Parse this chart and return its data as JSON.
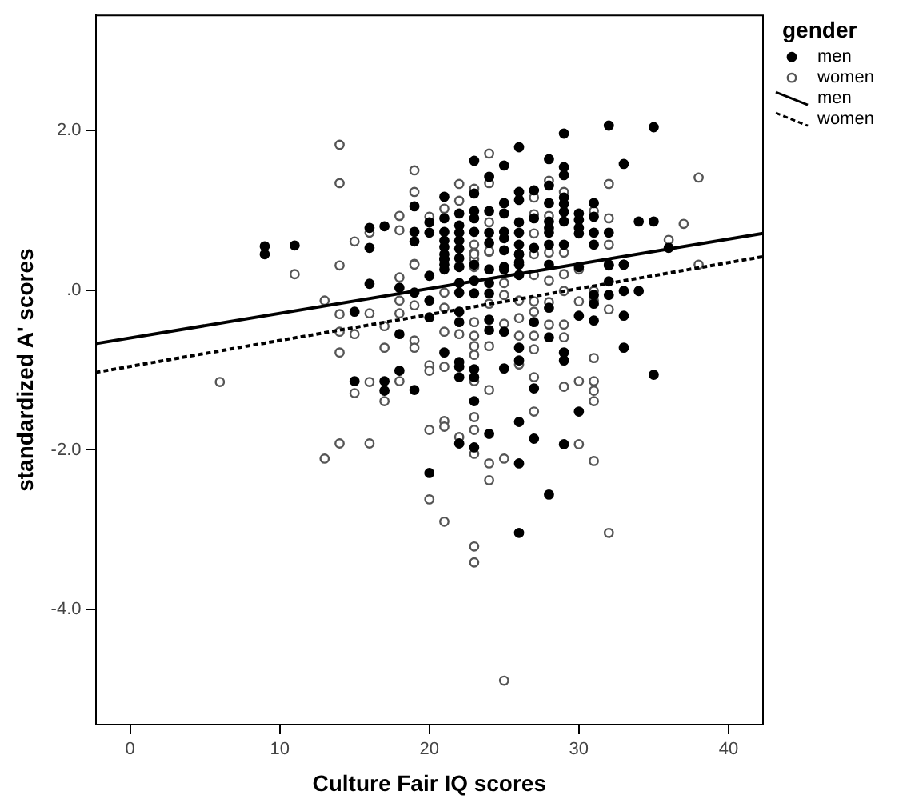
{
  "chart_data": {
    "type": "scatter",
    "xlabel": "Culture Fair IQ scores",
    "ylabel": "standardized A' scores",
    "legend_title": "gender",
    "legend": "right",
    "grid": false,
    "xlim": [
      -2.3,
      42.3
    ],
    "xticks": [
      0,
      10,
      20,
      30,
      40
    ],
    "ylim": [
      -5.44,
      3.44
    ],
    "yticks": [
      {
        "value": 2,
        "label": "2.0"
      },
      {
        "value": 0,
        "label": ".0"
      },
      {
        "value": -2,
        "label": "-2.0"
      },
      {
        "value": -4,
        "label": "-4.0"
      }
    ],
    "series": [
      {
        "name": "men",
        "type": "scatter",
        "marker": "circle",
        "color": "#000000",
        "x": [
          9,
          9,
          11,
          15,
          15,
          16,
          16,
          16,
          17,
          17,
          17,
          18,
          18,
          18,
          19,
          19,
          19,
          19,
          19,
          20,
          20,
          20,
          20,
          20,
          20,
          21,
          21,
          21,
          21,
          21,
          21,
          21,
          21,
          21,
          21,
          21,
          22,
          22,
          22,
          22,
          22,
          22,
          22,
          22,
          22,
          22,
          22,
          22,
          22,
          22,
          22,
          23,
          23,
          23,
          23,
          23,
          23,
          23,
          23,
          23,
          23,
          23,
          23,
          24,
          24,
          24,
          24,
          24,
          24,
          24,
          24,
          24,
          24,
          25,
          25,
          25,
          25,
          25,
          25,
          25,
          25,
          25,
          25,
          26,
          26,
          26,
          26,
          26,
          26,
          26,
          26,
          26,
          26,
          26,
          26,
          26,
          26,
          26,
          26,
          27,
          27,
          27,
          27,
          27,
          27,
          28,
          28,
          28,
          28,
          28,
          28,
          28,
          28,
          28,
          28,
          28,
          29,
          29,
          29,
          29,
          29,
          29,
          29,
          29,
          29,
          29,
          29,
          30,
          30,
          30,
          30,
          30,
          30,
          30,
          31,
          31,
          31,
          31,
          31,
          31,
          31,
          32,
          32,
          32,
          32,
          32,
          32,
          33,
          33,
          33,
          33,
          33,
          33,
          34,
          34,
          35,
          35,
          35,
          36
        ],
        "values": [
          0.55,
          0.45,
          0.56,
          -0.27,
          -1.14,
          0.78,
          0.53,
          0.08,
          0.8,
          -1.14,
          -1.26,
          0.03,
          -0.55,
          -1.01,
          1.05,
          0.73,
          0.61,
          -0.03,
          -1.25,
          0.85,
          0.72,
          0.18,
          -0.13,
          -0.34,
          -2.29,
          1.17,
          0.9,
          0.73,
          0.62,
          0.54,
          0.39,
          0.32,
          0.45,
          0.26,
          -0.78,
          0.39,
          0.96,
          0.81,
          0.72,
          0.62,
          0.52,
          0.4,
          0.29,
          0.09,
          -0.03,
          -0.27,
          -0.4,
          -0.9,
          -0.96,
          -1.09,
          -1.92,
          1.62,
          1.21,
          0.99,
          0.9,
          0.73,
          0.32,
          0.12,
          -0.04,
          -0.99,
          -1.09,
          -1.39,
          -1.97,
          1.42,
          0.99,
          0.72,
          0.59,
          0.26,
          0.09,
          -0.04,
          -0.37,
          -0.5,
          -1.8,
          1.56,
          1.09,
          0.96,
          0.73,
          0.65,
          0.5,
          0.29,
          0.26,
          -0.52,
          -0.98,
          1.79,
          1.23,
          1.13,
          0.85,
          0.72,
          0.57,
          0.45,
          0.35,
          0.45,
          0.32,
          0.19,
          -0.72,
          -0.88,
          -1.65,
          -2.17,
          -3.04,
          1.25,
          0.9,
          0.53,
          -0.4,
          -1.23,
          -1.86,
          1.64,
          1.31,
          1.09,
          0.86,
          0.78,
          0.72,
          0.57,
          0.32,
          -0.22,
          -0.59,
          -2.56,
          1.96,
          1.54,
          1.44,
          1.16,
          1.08,
          0.98,
          0.86,
          0.57,
          -0.78,
          -0.88,
          -1.93,
          0.96,
          0.88,
          0.78,
          0.71,
          0.29,
          -0.32,
          -1.52,
          1.09,
          0.92,
          0.72,
          0.57,
          -0.06,
          -0.17,
          -0.38,
          2.06,
          0.72,
          0.32,
          0.31,
          0.11,
          -0.06,
          1.58,
          0.32,
          0.32,
          -0.01,
          -0.32,
          -0.72,
          0.86,
          -0.01,
          2.04,
          0.86,
          -1.06,
          0.53
        ]
      },
      {
        "name": "women",
        "type": "scatter",
        "marker": "circle",
        "color": "#555555",
        "x": [
          14,
          14,
          14,
          15,
          16,
          18,
          18,
          19,
          19,
          19,
          20,
          21,
          22,
          22,
          22,
          23,
          23,
          23,
          23,
          24,
          24,
          24,
          24,
          27,
          27,
          27,
          27,
          28,
          28,
          28,
          29,
          29,
          31,
          32,
          32,
          32,
          36,
          37,
          38,
          38,
          6,
          11,
          13,
          13,
          14,
          14,
          14,
          14,
          15,
          15,
          16,
          16,
          16,
          17,
          17,
          17,
          18,
          18,
          18,
          18,
          19,
          19,
          19,
          19,
          20,
          20,
          20,
          20,
          21,
          21,
          21,
          21,
          21,
          21,
          22,
          22,
          23,
          23,
          23,
          23,
          23,
          23,
          23,
          23,
          23,
          23,
          24,
          24,
          24,
          24,
          24,
          24,
          25,
          25,
          25,
          25,
          26,
          26,
          26,
          26,
          27,
          27,
          27,
          27,
          27,
          27,
          27,
          28,
          28,
          28,
          29,
          29,
          29,
          29,
          29,
          30,
          30,
          30,
          30,
          31,
          31,
          31,
          31,
          31,
          31,
          31,
          32,
          21,
          32,
          23,
          23,
          25
        ],
        "values": [
          1.82,
          1.34,
          0.31,
          0.61,
          0.72,
          0.93,
          0.75,
          1.5,
          1.23,
          0.33,
          0.92,
          1.02,
          1.33,
          1.12,
          0.3,
          1.27,
          0.57,
          0.47,
          0.39,
          1.71,
          1.34,
          0.85,
          0.48,
          1.16,
          0.95,
          0.71,
          0.45,
          1.37,
          0.93,
          0.47,
          1.23,
          0.47,
          0.99,
          1.33,
          0.9,
          0.57,
          0.63,
          0.83,
          1.41,
          0.32,
          -1.15,
          0.2,
          -0.13,
          -2.11,
          -0.3,
          -0.52,
          -0.78,
          -1.92,
          -0.55,
          -1.29,
          -0.29,
          -1.15,
          -1.92,
          -0.45,
          -0.72,
          -1.39,
          0.16,
          -0.13,
          -0.29,
          -1.14,
          0.32,
          -0.19,
          -0.63,
          -0.72,
          -0.94,
          -1.01,
          -1.75,
          -2.62,
          -0.03,
          -0.22,
          -0.52,
          -0.96,
          -1.64,
          -1.71,
          -0.55,
          -1.84,
          0.45,
          0.29,
          -0.4,
          -0.57,
          -0.7,
          -0.81,
          -1.14,
          -1.59,
          -1.75,
          -2.05,
          0.49,
          -0.17,
          -0.7,
          -1.25,
          -2.17,
          -2.38,
          0.09,
          -0.06,
          -0.42,
          -2.11,
          -0.13,
          -0.35,
          -0.57,
          -0.93,
          0.19,
          -0.14,
          -0.27,
          -0.57,
          -0.74,
          -1.09,
          -1.52,
          0.12,
          -0.15,
          -0.43,
          0.2,
          -0.01,
          -0.43,
          -0.59,
          -1.21,
          0.26,
          -0.14,
          -1.14,
          -1.93,
          -0.01,
          -0.13,
          -0.85,
          -1.14,
          -1.26,
          -1.39,
          -2.14,
          -0.24,
          -2.9,
          -3.04,
          -3.21,
          -3.41,
          -4.89
        ]
      },
      {
        "name": "men",
        "type": "line",
        "color": "#000000",
        "line_style": "solid",
        "x": [
          -2.3,
          42.3
        ],
        "values": [
          -0.67,
          0.71
        ]
      },
      {
        "name": "women",
        "type": "line",
        "color": "#000000",
        "line_style": "dashed",
        "x": [
          -2.3,
          42.3
        ],
        "values": [
          -1.03,
          0.42
        ]
      }
    ]
  }
}
